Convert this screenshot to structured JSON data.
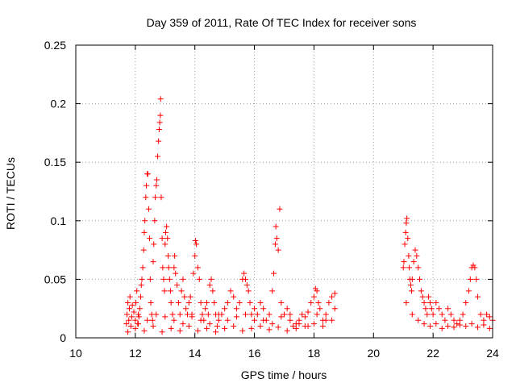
{
  "chart_data": {
    "type": "scatter",
    "title": "Day 359 of 2011, Rate Of TEC Index for receiver sons",
    "xlabel": "GPS time / hours",
    "ylabel": "ROTI / TECUs",
    "xlim": [
      10,
      24
    ],
    "ylim": [
      0,
      0.25
    ],
    "x_ticks": [
      "10",
      "12",
      "14",
      "16",
      "18",
      "20",
      "22",
      "24"
    ],
    "y_ticks": [
      "0",
      "0.05",
      "0.1",
      "0.15",
      "0.2",
      "0.25"
    ],
    "grid": true,
    "marker": "+",
    "series": [
      {
        "color": "#ff0000",
        "points": [
          [
            11.7,
            0.012
          ],
          [
            11.72,
            0.02
          ],
          [
            11.75,
            0.03
          ],
          [
            11.78,
            0.015
          ],
          [
            11.8,
            0.025
          ],
          [
            11.82,
            0.035
          ],
          [
            11.85,
            0.01
          ],
          [
            11.88,
            0.018
          ],
          [
            11.9,
            0.028
          ],
          [
            11.95,
            0.022
          ],
          [
            12.0,
            0.015
          ],
          [
            12.02,
            0.03
          ],
          [
            12.05,
            0.04
          ],
          [
            12.08,
            0.012
          ],
          [
            12.1,
            0.02
          ],
          [
            12.12,
            0.018
          ],
          [
            12.15,
            0.025
          ],
          [
            12.18,
            0.035
          ],
          [
            12.2,
            0.045
          ],
          [
            12.22,
            0.05
          ],
          [
            12.25,
            0.06
          ],
          [
            12.28,
            0.075
          ],
          [
            12.3,
            0.09
          ],
          [
            12.32,
            0.1
          ],
          [
            12.35,
            0.12
          ],
          [
            12.37,
            0.13
          ],
          [
            12.4,
            0.14
          ],
          [
            12.42,
            0.14
          ],
          [
            12.45,
            0.11
          ],
          [
            12.48,
            0.085
          ],
          [
            12.5,
            0.05
          ],
          [
            12.52,
            0.03
          ],
          [
            12.55,
            0.02
          ],
          [
            12.58,
            0.015
          ],
          [
            12.6,
            0.065
          ],
          [
            12.62,
            0.08
          ],
          [
            12.65,
            0.1
          ],
          [
            12.67,
            0.12
          ],
          [
            12.7,
            0.13
          ],
          [
            12.72,
            0.135
          ],
          [
            12.75,
            0.155
          ],
          [
            12.78,
            0.168
          ],
          [
            12.8,
            0.178
          ],
          [
            12.82,
            0.184
          ],
          [
            12.84,
            0.19
          ],
          [
            12.85,
            0.204
          ],
          [
            12.87,
            0.12
          ],
          [
            12.9,
            0.085
          ],
          [
            12.92,
            0.06
          ],
          [
            12.95,
            0.05
          ],
          [
            12.98,
            0.04
          ],
          [
            13.0,
            0.08
          ],
          [
            13.02,
            0.09
          ],
          [
            13.05,
            0.095
          ],
          [
            13.08,
            0.085
          ],
          [
            13.1,
            0.07
          ],
          [
            13.12,
            0.06
          ],
          [
            13.15,
            0.05
          ],
          [
            13.18,
            0.04
          ],
          [
            13.2,
            0.03
          ],
          [
            13.25,
            0.02
          ],
          [
            13.3,
            0.06
          ],
          [
            13.32,
            0.07
          ],
          [
            13.35,
            0.055
          ],
          [
            13.4,
            0.045
          ],
          [
            13.45,
            0.03
          ],
          [
            13.5,
            0.02
          ],
          [
            13.55,
            0.04
          ],
          [
            13.6,
            0.05
          ],
          [
            13.65,
            0.035
          ],
          [
            13.7,
            0.025
          ],
          [
            13.75,
            0.02
          ],
          [
            13.8,
            0.03
          ],
          [
            13.85,
            0.035
          ],
          [
            13.9,
            0.02
          ],
          [
            13.95,
            0.055
          ],
          [
            14.0,
            0.07
          ],
          [
            14.02,
            0.083
          ],
          [
            14.05,
            0.08
          ],
          [
            14.1,
            0.06
          ],
          [
            14.15,
            0.05
          ],
          [
            14.2,
            0.03
          ],
          [
            14.25,
            0.02
          ],
          [
            14.3,
            0.015
          ],
          [
            14.35,
            0.025
          ],
          [
            14.4,
            0.03
          ],
          [
            14.45,
            0.02
          ],
          [
            14.5,
            0.045
          ],
          [
            14.55,
            0.05
          ],
          [
            14.6,
            0.04
          ],
          [
            14.65,
            0.03
          ],
          [
            14.7,
            0.02
          ],
          [
            14.75,
            0.01
          ],
          [
            14.8,
            0.015
          ],
          [
            14.9,
            0.02
          ],
          [
            15.0,
            0.025
          ],
          [
            15.1,
            0.03
          ],
          [
            15.2,
            0.04
          ],
          [
            15.3,
            0.035
          ],
          [
            15.4,
            0.025
          ],
          [
            15.5,
            0.03
          ],
          [
            15.6,
            0.05
          ],
          [
            15.65,
            0.055
          ],
          [
            15.7,
            0.05
          ],
          [
            15.75,
            0.045
          ],
          [
            15.8,
            0.04
          ],
          [
            15.85,
            0.03
          ],
          [
            15.9,
            0.02
          ],
          [
            16.0,
            0.015
          ],
          [
            16.1,
            0.02
          ],
          [
            16.2,
            0.03
          ],
          [
            16.3,
            0.025
          ],
          [
            16.4,
            0.015
          ],
          [
            16.5,
            0.02
          ],
          [
            16.6,
            0.04
          ],
          [
            16.65,
            0.055
          ],
          [
            16.7,
            0.08
          ],
          [
            16.72,
            0.095
          ],
          [
            16.75,
            0.085
          ],
          [
            16.8,
            0.075
          ],
          [
            16.85,
            0.11
          ],
          [
            16.9,
            0.03
          ],
          [
            17.0,
            0.02
          ],
          [
            17.1,
            0.025
          ],
          [
            17.2,
            0.015
          ],
          [
            17.3,
            0.01
          ],
          [
            17.4,
            0.012
          ],
          [
            17.5,
            0.015
          ],
          [
            17.6,
            0.02
          ],
          [
            17.7,
            0.018
          ],
          [
            17.8,
            0.022
          ],
          [
            17.9,
            0.03
          ],
          [
            18.0,
            0.035
          ],
          [
            18.05,
            0.042
          ],
          [
            18.1,
            0.04
          ],
          [
            18.15,
            0.03
          ],
          [
            18.2,
            0.025
          ],
          [
            18.3,
            0.015
          ],
          [
            18.4,
            0.02
          ],
          [
            18.5,
            0.03
          ],
          [
            18.6,
            0.035
          ],
          [
            18.7,
            0.038
          ],
          [
            11.75,
            0.005
          ],
          [
            12.0,
            0.008
          ],
          [
            12.3,
            0.006
          ],
          [
            12.6,
            0.01
          ],
          [
            12.9,
            0.005
          ],
          [
            13.2,
            0.008
          ],
          [
            13.5,
            0.006
          ],
          [
            13.8,
            0.01
          ],
          [
            14.1,
            0.006
          ],
          [
            14.4,
            0.008
          ],
          [
            14.7,
            0.005
          ],
          [
            15.0,
            0.008
          ],
          [
            15.3,
            0.01
          ],
          [
            15.6,
            0.006
          ],
          [
            15.9,
            0.008
          ],
          [
            16.2,
            0.01
          ],
          [
            16.5,
            0.007
          ],
          [
            16.8,
            0.009
          ],
          [
            17.1,
            0.006
          ],
          [
            17.4,
            0.008
          ],
          [
            17.7,
            0.01
          ],
          [
            18.0,
            0.012
          ],
          [
            18.3,
            0.01
          ],
          [
            18.6,
            0.015
          ],
          [
            21.0,
            0.06
          ],
          [
            21.02,
            0.065
          ],
          [
            21.05,
            0.08
          ],
          [
            21.08,
            0.09
          ],
          [
            21.1,
            0.098
          ],
          [
            21.12,
            0.102
          ],
          [
            21.15,
            0.085
          ],
          [
            21.18,
            0.07
          ],
          [
            21.2,
            0.06
          ],
          [
            21.22,
            0.05
          ],
          [
            21.25,
            0.045
          ],
          [
            21.28,
            0.04
          ],
          [
            21.3,
            0.05
          ],
          [
            21.35,
            0.065
          ],
          [
            21.4,
            0.075
          ],
          [
            21.45,
            0.07
          ],
          [
            21.5,
            0.06
          ],
          [
            21.55,
            0.05
          ],
          [
            21.6,
            0.04
          ],
          [
            21.65,
            0.035
          ],
          [
            21.7,
            0.03
          ],
          [
            21.75,
            0.025
          ],
          [
            21.8,
            0.02
          ],
          [
            21.85,
            0.035
          ],
          [
            21.9,
            0.03
          ],
          [
            21.95,
            0.025
          ],
          [
            22.0,
            0.02
          ],
          [
            22.1,
            0.03
          ],
          [
            22.2,
            0.025
          ],
          [
            22.3,
            0.02
          ],
          [
            22.4,
            0.015
          ],
          [
            22.5,
            0.025
          ],
          [
            22.6,
            0.02
          ],
          [
            22.7,
            0.015
          ],
          [
            22.8,
            0.012
          ],
          [
            22.9,
            0.015
          ],
          [
            23.0,
            0.02
          ],
          [
            23.1,
            0.03
          ],
          [
            23.2,
            0.04
          ],
          [
            23.25,
            0.05
          ],
          [
            23.3,
            0.06
          ],
          [
            23.35,
            0.062
          ],
          [
            23.4,
            0.06
          ],
          [
            23.45,
            0.05
          ],
          [
            23.5,
            0.035
          ],
          [
            23.6,
            0.02
          ],
          [
            23.7,
            0.015
          ],
          [
            23.8,
            0.02
          ],
          [
            23.9,
            0.018
          ],
          [
            24.0,
            0.015
          ],
          [
            21.1,
            0.03
          ],
          [
            21.3,
            0.02
          ],
          [
            21.5,
            0.015
          ],
          [
            21.7,
            0.012
          ],
          [
            21.9,
            0.01
          ],
          [
            22.1,
            0.012
          ],
          [
            22.3,
            0.008
          ],
          [
            22.5,
            0.01
          ],
          [
            22.7,
            0.009
          ],
          [
            22.9,
            0.011
          ],
          [
            23.1,
            0.01
          ],
          [
            23.3,
            0.012
          ],
          [
            23.5,
            0.009
          ],
          [
            23.7,
            0.011
          ],
          [
            23.9,
            0.008
          ],
          [
            12.1,
            0.012
          ],
          [
            12.4,
            0.015
          ],
          [
            12.7,
            0.02
          ],
          [
            13.0,
            0.018
          ],
          [
            13.3,
            0.015
          ],
          [
            13.6,
            0.012
          ],
          [
            13.9,
            0.018
          ],
          [
            14.2,
            0.015
          ],
          [
            14.5,
            0.012
          ],
          [
            14.8,
            0.02
          ],
          [
            15.1,
            0.015
          ],
          [
            15.4,
            0.018
          ],
          [
            15.7,
            0.02
          ],
          [
            16.0,
            0.025
          ],
          [
            16.3,
            0.015
          ],
          [
            16.6,
            0.012
          ],
          [
            16.9,
            0.018
          ],
          [
            17.2,
            0.02
          ],
          [
            17.5,
            0.012
          ],
          [
            17.8,
            0.01
          ],
          [
            18.1,
            0.02
          ],
          [
            18.4,
            0.015
          ],
          [
            18.7,
            0.025
          ]
        ]
      }
    ]
  }
}
